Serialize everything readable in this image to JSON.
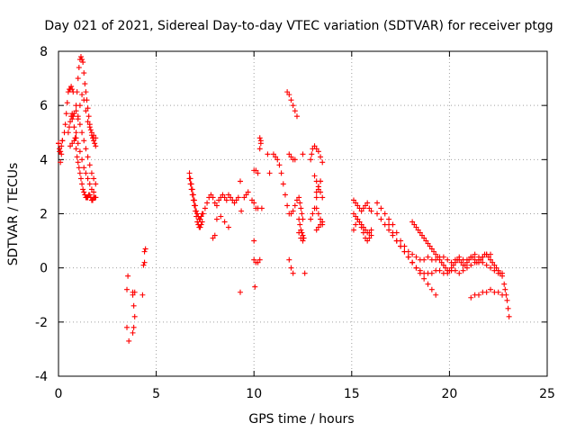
{
  "chart_data": {
    "type": "scatter",
    "title": "Day 021 of 2021, Sidereal Day-to-day VTEC variation (SDTVAR) for receiver ptgg",
    "xlabel": "GPS time / hours",
    "ylabel": "SDTVAR / TECUs",
    "xlim": [
      0,
      25
    ],
    "ylim": [
      -4,
      8
    ],
    "xticks": [
      0,
      5,
      10,
      15,
      20,
      25
    ],
    "yticks": [
      -4,
      -2,
      0,
      2,
      4,
      6,
      8
    ],
    "grid": true,
    "legend": "none",
    "marker": "+",
    "color": "#ff0000",
    "series": [
      {
        "name": "SDTVAR",
        "x": [
          0.0,
          0.05,
          0.1,
          0.15,
          0.2,
          0.0,
          0.05,
          0.1,
          0.15,
          0.2,
          0.3,
          0.35,
          0.4,
          0.45,
          0.5,
          0.55,
          0.6,
          0.65,
          0.7,
          0.75,
          0.5,
          0.55,
          0.6,
          0.65,
          0.7,
          0.75,
          0.8,
          0.85,
          0.9,
          0.95,
          1.0,
          1.05,
          1.1,
          1.15,
          1.2,
          1.25,
          1.3,
          1.35,
          1.4,
          1.45,
          1.5,
          1.55,
          1.6,
          1.65,
          1.7,
          1.75,
          1.8,
          1.85,
          1.9,
          0.9,
          0.95,
          1.0,
          1.05,
          1.1,
          1.15,
          1.2,
          1.25,
          1.3,
          1.35,
          1.4,
          1.45,
          1.5,
          1.55,
          1.6,
          1.65,
          1.7,
          1.75,
          1.8,
          1.85,
          1.9,
          0.9,
          1.0,
          1.1,
          1.2,
          1.3,
          1.4,
          1.5,
          1.6,
          1.7,
          1.8,
          1.9,
          0.7,
          0.8,
          0.9,
          1.0,
          1.1,
          1.2,
          1.3,
          1.4,
          1.5,
          1.6,
          1.7,
          1.8,
          1.9,
          0.6,
          0.7,
          0.8,
          0.9,
          1.0,
          1.1,
          1.2,
          1.3,
          1.4,
          1.5,
          1.6,
          1.7,
          1.8,
          1.9,
          3.5,
          3.55,
          3.5,
          3.6,
          3.8,
          3.85,
          3.9,
          3.8,
          3.85,
          3.8,
          3.9,
          4.3,
          4.35,
          4.4,
          4.45,
          4.4,
          6.7,
          6.75,
          6.8,
          6.85,
          6.9,
          6.95,
          7.0,
          7.05,
          7.1,
          7.15,
          7.2,
          7.25,
          7.3,
          7.35,
          6.7,
          6.75,
          6.8,
          6.85,
          6.9,
          6.95,
          7.0,
          7.05,
          7.1,
          7.15,
          7.2,
          7.25,
          7.3,
          7.35,
          7.4,
          7.5,
          7.6,
          7.7,
          7.8,
          7.9,
          8.0,
          8.1,
          8.2,
          8.3,
          8.4,
          8.5,
          8.6,
          8.7,
          8.8,
          8.9,
          9.0,
          9.1,
          9.2,
          7.9,
          8.0,
          8.1,
          8.3,
          8.5,
          8.7,
          9.3,
          9.35,
          9.3,
          9.5,
          9.6,
          9.7,
          10.0,
          10.05,
          9.9,
          10.0,
          10.1,
          10.2,
          10.0,
          10.1,
          10.2,
          10.3,
          10.35,
          10.3,
          10.35,
          10.0,
          10.1,
          10.2,
          10.3,
          10.4,
          10.7,
          10.8,
          11.0,
          11.1,
          11.2,
          11.3,
          11.4,
          11.5,
          11.6,
          11.7,
          11.8,
          11.9,
          12.0,
          12.1,
          12.2,
          11.7,
          11.8,
          11.9,
          12.0,
          12.1,
          12.2,
          11.8,
          11.9,
          12.0,
          12.1,
          11.8,
          11.9,
          12.0,
          12.5,
          12.6,
          12.3,
          12.35,
          12.4,
          12.45,
          12.5,
          12.3,
          12.4,
          12.5,
          12.3,
          12.35,
          12.4,
          12.45,
          12.5,
          12.55,
          12.9,
          12.95,
          13.0,
          12.9,
          13.0,
          13.1,
          13.2,
          13.3,
          13.4,
          13.1,
          13.2,
          13.3,
          13.4,
          13.5,
          13.1,
          13.2,
          13.3,
          13.4,
          13.5,
          13.2,
          13.3,
          13.4,
          13.5,
          13.2,
          13.3,
          13.4,
          13.5,
          13.2,
          13.3,
          13.4,
          15.1,
          15.2,
          15.3,
          15.4,
          15.5,
          15.6,
          15.7,
          15.8,
          15.9,
          16.0,
          15.1,
          15.2,
          15.3,
          15.4,
          15.5,
          15.6,
          15.7,
          15.8,
          15.9,
          16.0,
          15.1,
          15.2,
          15.3,
          15.4,
          15.5,
          15.6,
          15.7,
          15.8,
          15.9,
          16.0,
          16.3,
          16.5,
          16.7,
          16.9,
          17.1,
          17.3,
          17.5,
          17.7,
          17.9,
          18.1,
          18.3,
          18.5,
          18.7,
          18.9,
          19.1,
          19.3,
          19.5,
          19.7,
          19.9,
          20.1,
          20.3,
          20.5,
          20.7,
          20.9,
          21.1,
          21.3,
          21.5,
          21.7,
          21.9,
          22.1,
          16.3,
          16.5,
          16.7,
          16.9,
          17.1,
          17.3,
          17.5,
          17.7,
          17.9,
          18.1,
          18.3,
          18.5,
          18.7,
          18.9,
          19.1,
          19.3,
          19.5,
          19.7,
          19.9,
          20.1,
          20.3,
          20.5,
          20.7,
          20.9,
          21.1,
          21.3,
          21.5,
          21.7,
          21.9,
          22.1,
          22.3,
          22.5,
          22.7,
          16.9,
          17.1,
          17.3,
          17.5,
          17.7,
          17.9,
          18.1,
          18.3,
          18.5,
          18.7,
          18.9,
          19.1,
          19.3,
          18.1,
          18.2,
          18.3,
          18.4,
          18.5,
          18.6,
          18.7,
          18.8,
          18.9,
          19.0,
          19.1,
          19.2,
          19.3,
          19.4,
          19.5,
          19.6,
          19.7,
          19.8,
          19.9,
          20.0,
          20.1,
          20.2,
          20.3,
          20.4,
          20.5,
          20.6,
          20.7,
          20.8,
          20.9,
          21.0,
          21.1,
          21.2,
          21.3,
          21.4,
          21.5,
          21.6,
          21.7,
          21.8,
          21.9,
          22.0,
          22.1,
          22.2,
          22.3,
          22.4,
          22.5,
          22.6,
          22.7,
          21.1,
          21.3,
          21.5,
          21.7,
          21.9,
          22.1,
          22.3,
          22.5,
          22.7,
          22.8,
          22.85,
          22.9,
          22.95,
          23.0,
          23.05
        ],
        "y": [
          4.6,
          4.3,
          3.9,
          4.2,
          4.7,
          4.6,
          4.4,
          4.3,
          4.5,
          4.7,
          5.0,
          5.3,
          5.7,
          6.1,
          6.5,
          6.6,
          6.6,
          6.7,
          6.6,
          6.5,
          5.0,
          5.2,
          5.4,
          5.6,
          5.7,
          5.6,
          5.2,
          4.8,
          4.4,
          4.1,
          3.9,
          3.7,
          3.5,
          3.3,
          3.1,
          2.9,
          2.8,
          2.7,
          2.6,
          2.6,
          2.6,
          2.7,
          2.7,
          2.6,
          2.5,
          2.5,
          2.6,
          2.6,
          2.6,
          6.0,
          6.5,
          7.0,
          7.4,
          7.7,
          7.8,
          7.7,
          7.6,
          7.2,
          6.8,
          6.5,
          6.2,
          5.9,
          5.6,
          5.3,
          5.1,
          4.9,
          4.8,
          4.7,
          4.6,
          4.5,
          5.0,
          5.5,
          6.0,
          6.4,
          6.2,
          5.8,
          5.4,
          5.2,
          5.0,
          4.9,
          4.8,
          5.5,
          5.7,
          5.8,
          5.6,
          5.3,
          5.0,
          4.7,
          4.4,
          4.1,
          3.8,
          3.5,
          3.3,
          3.1,
          4.5,
          4.6,
          4.7,
          4.8,
          4.6,
          4.3,
          4.0,
          3.7,
          3.5,
          3.3,
          3.1,
          2.9,
          2.8,
          2.6,
          -0.8,
          -0.3,
          -2.2,
          -2.7,
          -0.9,
          -1.4,
          -1.8,
          -2.4,
          -2.2,
          -1.0,
          -0.9,
          -1.0,
          0.1,
          0.6,
          0.7,
          0.2,
          3.5,
          3.3,
          3.1,
          2.9,
          2.7,
          2.5,
          2.3,
          2.1,
          2.0,
          1.9,
          1.8,
          1.8,
          1.9,
          2.0,
          3.3,
          3.1,
          2.9,
          2.7,
          2.5,
          2.3,
          2.1,
          1.9,
          1.7,
          1.6,
          1.5,
          1.5,
          1.6,
          1.7,
          2.0,
          2.2,
          2.4,
          2.6,
          2.7,
          2.6,
          2.4,
          2.3,
          2.5,
          2.6,
          2.7,
          2.6,
          2.5,
          2.7,
          2.6,
          2.5,
          2.4,
          2.5,
          2.6,
          1.1,
          1.2,
          1.8,
          1.9,
          1.7,
          1.5,
          3.2,
          2.1,
          -0.9,
          2.6,
          2.7,
          2.8,
          1.0,
          -0.7,
          2.5,
          2.4,
          2.2,
          2.2,
          3.6,
          3.6,
          3.5,
          4.8,
          4.6,
          4.4,
          4.7,
          0.3,
          0.2,
          0.2,
          0.3,
          2.2,
          4.2,
          3.5,
          4.2,
          4.1,
          4.0,
          3.8,
          3.5,
          3.1,
          2.7,
          2.3,
          2.0,
          2.0,
          2.1,
          2.3,
          2.5,
          6.5,
          6.4,
          6.2,
          6.0,
          5.8,
          5.6,
          4.2,
          4.1,
          4.0,
          4.0,
          0.3,
          0.0,
          -0.2,
          4.2,
          -0.2,
          2.6,
          2.4,
          2.2,
          2.0,
          1.8,
          1.3,
          1.1,
          1.0,
          1.8,
          1.6,
          1.4,
          1.3,
          1.2,
          1.1,
          4.0,
          4.2,
          4.4,
          1.8,
          2.0,
          2.2,
          2.6,
          2.9,
          3.2,
          4.5,
          4.4,
          4.3,
          4.1,
          3.9,
          3.4,
          3.2,
          3.0,
          2.8,
          2.6,
          2.2,
          2.0,
          1.8,
          1.6,
          1.4,
          1.5,
          1.6,
          1.7,
          2.8,
          3.0,
          3.2,
          2.5,
          2.4,
          2.3,
          2.2,
          2.1,
          2.2,
          2.3,
          2.4,
          2.2,
          2.1,
          2.0,
          1.9,
          1.8,
          1.7,
          1.6,
          1.5,
          1.4,
          1.3,
          1.3,
          1.4,
          1.4,
          1.6,
          1.8,
          1.7,
          1.5,
          1.3,
          1.1,
          1.0,
          1.1,
          1.2,
          2.4,
          2.2,
          2.0,
          1.8,
          1.6,
          1.3,
          1.0,
          0.8,
          0.6,
          0.5,
          0.4,
          0.3,
          0.3,
          0.4,
          0.3,
          0.3,
          0.4,
          0.4,
          0.3,
          0.2,
          0.3,
          0.4,
          0.3,
          0.3,
          0.4,
          0.5,
          0.4,
          0.4,
          0.5,
          0.5,
          2.0,
          1.8,
          1.6,
          1.4,
          1.2,
          1.0,
          0.8,
          0.6,
          0.4,
          0.2,
          0.0,
          -0.1,
          -0.2,
          -0.2,
          -0.2,
          -0.1,
          -0.1,
          -0.2,
          -0.2,
          -0.1,
          -0.1,
          -0.2,
          -0.1,
          0.0,
          0.1,
          0.2,
          0.3,
          0.2,
          0.1,
          0.0,
          -0.1,
          -0.2,
          -0.3,
          1.6,
          1.3,
          1.0,
          0.8,
          0.6,
          0.4,
          0.2,
          0.0,
          -0.2,
          -0.4,
          -0.6,
          -0.8,
          -1.0,
          1.7,
          1.6,
          1.5,
          1.4,
          1.3,
          1.2,
          1.1,
          1.0,
          0.9,
          0.8,
          0.7,
          0.6,
          0.5,
          0.4,
          0.3,
          0.2,
          0.1,
          0.0,
          -0.1,
          -0.1,
          0.0,
          0.1,
          0.2,
          0.3,
          0.3,
          0.2,
          0.1,
          0.1,
          0.2,
          0.3,
          0.4,
          0.4,
          0.3,
          0.2,
          0.2,
          0.3,
          0.4,
          0.5,
          0.5,
          0.4,
          0.3,
          0.2,
          0.1,
          0.0,
          -0.1,
          -0.2,
          -0.2,
          -1.1,
          -1.0,
          -1.0,
          -0.9,
          -0.9,
          -0.8,
          -0.9,
          -0.9,
          -1.0,
          -0.6,
          -0.8,
          -1.0,
          -1.2,
          -1.5,
          -1.8
        ]
      }
    ]
  }
}
